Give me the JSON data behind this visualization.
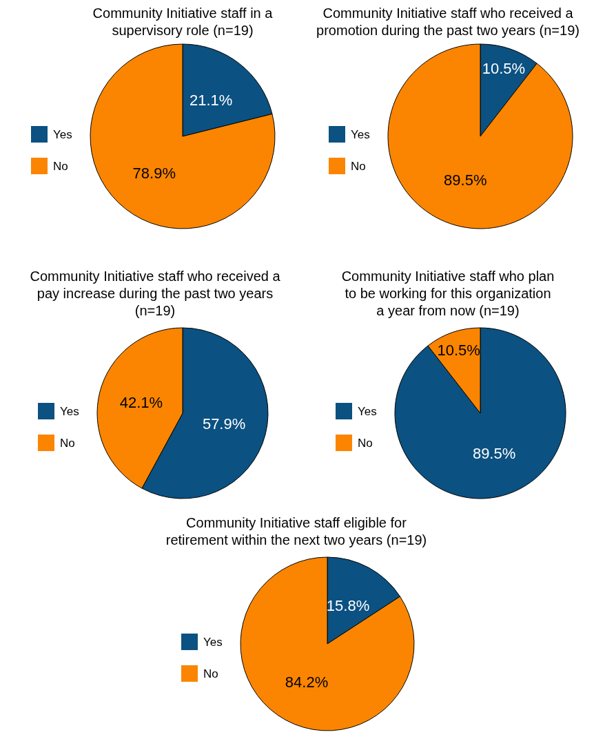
{
  "chart_data": [
    {
      "type": "pie",
      "title": "Community Initiative staff in a supervisory role (n=19)",
      "categories": [
        "Yes",
        "No"
      ],
      "values": [
        21.1,
        78.9
      ],
      "colors": [
        "#0b5181",
        "#fb8500"
      ],
      "value_labels": [
        "21.1%",
        "78.9%"
      ],
      "legend": "left"
    },
    {
      "type": "pie",
      "title": "Community Initiative staff who received a promotion during the past two years (n=19)",
      "categories": [
        "Yes",
        "No"
      ],
      "values": [
        10.5,
        89.5
      ],
      "colors": [
        "#0b5181",
        "#fb8500"
      ],
      "value_labels": [
        "10.5%",
        "89.5%"
      ],
      "legend": "left"
    },
    {
      "type": "pie",
      "title": "Community Initiative staff who received a pay increase during the past two years (n=19)",
      "categories": [
        "Yes",
        "No"
      ],
      "values": [
        57.9,
        42.1
      ],
      "colors": [
        "#0b5181",
        "#fb8500"
      ],
      "value_labels": [
        "57.9%",
        "42.1%"
      ],
      "legend": "left"
    },
    {
      "type": "pie",
      "title": "Community Initiative staff who plan to be working for this organization a year from now (n=19)",
      "categories": [
        "Yes",
        "No"
      ],
      "values": [
        89.5,
        10.5
      ],
      "colors": [
        "#0b5181",
        "#fb8500"
      ],
      "value_labels": [
        "89.5%",
        "10.5%"
      ],
      "legend": "left"
    },
    {
      "type": "pie",
      "title": "Community Initiative staff eligible for retirement within the next two years (n=19)",
      "categories": [
        "Yes",
        "No"
      ],
      "values": [
        15.8,
        84.2
      ],
      "colors": [
        "#0b5181",
        "#fb8500"
      ],
      "value_labels": [
        "15.8%",
        "84.2%"
      ],
      "legend": "left"
    }
  ]
}
